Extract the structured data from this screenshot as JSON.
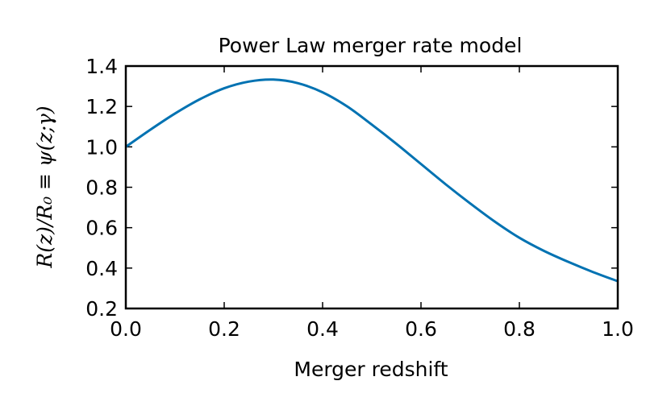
{
  "chart_data": {
    "type": "line",
    "title": "Power Law merger rate model",
    "xlabel": "Merger redshift",
    "ylabel": "R(z)/R₀ ≡ ψ(z;γ)",
    "xlim": [
      0.0,
      1.0
    ],
    "ylim": [
      0.2,
      1.4
    ],
    "xticks": [
      "0.0",
      "0.2",
      "0.4",
      "0.6",
      "0.8",
      "1.0"
    ],
    "yticks": [
      "0.2",
      "0.4",
      "0.6",
      "0.8",
      "1.0",
      "1.2",
      "1.4"
    ],
    "grid": false,
    "legend": "none",
    "series": [
      {
        "color": "#0072b2",
        "x": [
          0.0,
          0.05,
          0.1,
          0.15,
          0.2,
          0.25,
          0.3,
          0.35,
          0.4,
          0.45,
          0.5,
          0.55,
          0.6,
          0.65,
          0.7,
          0.75,
          0.8,
          0.85,
          0.9,
          0.95,
          1.0
        ],
        "y": [
          1.0,
          1.085,
          1.165,
          1.235,
          1.29,
          1.323,
          1.333,
          1.315,
          1.27,
          1.2,
          1.11,
          1.015,
          0.915,
          0.815,
          0.72,
          0.63,
          0.55,
          0.485,
          0.43,
          0.38,
          0.335
        ]
      }
    ]
  }
}
